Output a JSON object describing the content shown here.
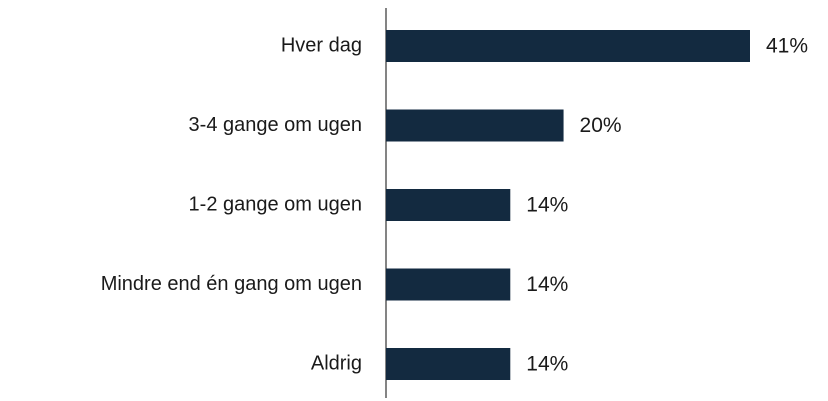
{
  "chart_data": {
    "type": "bar",
    "orientation": "horizontal",
    "categories": [
      "Hver dag",
      "3-4 gange om ugen",
      "1-2 gange om ugen",
      "Mindre end én gang om ugen",
      "Aldrig"
    ],
    "values": [
      41,
      20,
      14,
      14,
      14
    ],
    "value_labels": [
      "41%",
      "20%",
      "14%",
      "14%",
      "14%"
    ],
    "color": "#132a40"
  }
}
